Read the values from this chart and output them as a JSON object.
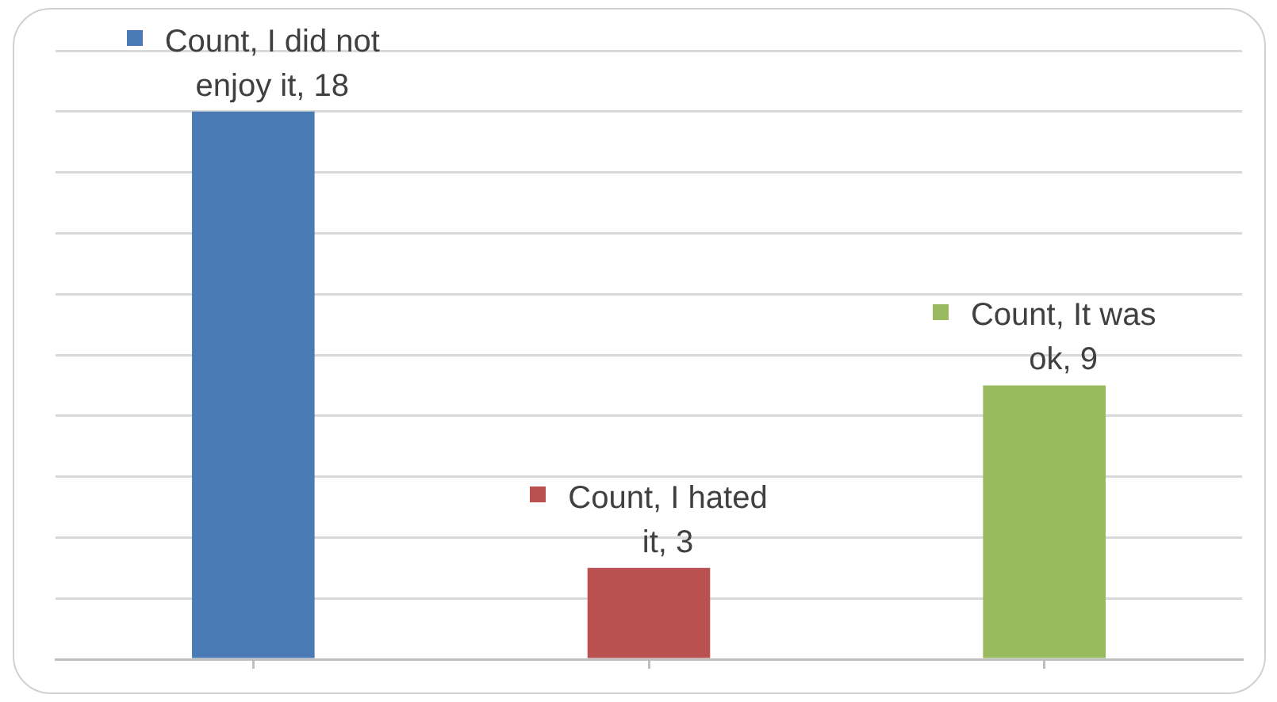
{
  "chart_data": {
    "type": "bar",
    "categories": [
      null,
      null,
      null
    ],
    "values": [
      18,
      3,
      9
    ],
    "colors": [
      "#4a7bb5",
      "#b8514f",
      "#98b95e"
    ],
    "value_labels": [
      "Count, I did not enjoy it, 18",
      "Count, I hated it, 3",
      "Count, It was ok, 9"
    ],
    "ylim": [
      0,
      20
    ],
    "yticks": [
      {
        "value": 0,
        "label": null
      },
      {
        "value": 2,
        "label": null
      },
      {
        "value": 4,
        "label": null
      },
      {
        "value": 6,
        "label": null
      },
      {
        "value": 8,
        "label": null
      },
      {
        "value": 10,
        "label": null
      },
      {
        "value": 12,
        "label": null
      },
      {
        "value": 14,
        "label": null
      },
      {
        "value": 16,
        "label": null
      },
      {
        "value": 18,
        "label": null
      },
      {
        "value": 20,
        "label": null
      }
    ],
    "grid": "y"
  }
}
